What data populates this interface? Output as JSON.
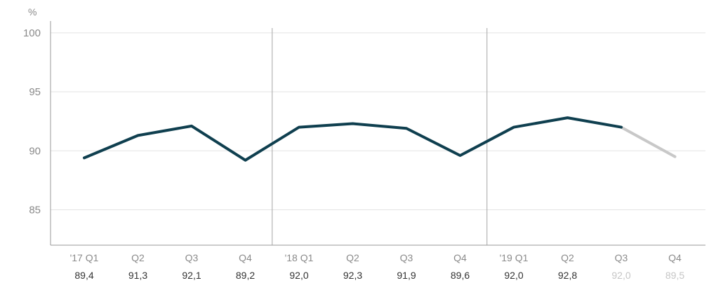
{
  "chart_data": {
    "type": "line",
    "unit_label": "%",
    "ylim": [
      82,
      101
    ],
    "yticks": [
      "100",
      "95",
      "90",
      "85"
    ],
    "categories": [
      "'17 Q1",
      "Q2",
      "Q3",
      "Q4",
      "'18 Q1",
      "Q2",
      "Q3",
      "Q4",
      "'19 Q1",
      "Q2",
      "Q3",
      "Q4"
    ],
    "value_labels": [
      "89,4",
      "91,3",
      "92,1",
      "89,2",
      "92,0",
      "92,3",
      "91,9",
      "89,6",
      "92,0",
      "92,8",
      "92,0",
      "89,5"
    ],
    "series": [
      {
        "values": [
          89.4,
          91.3,
          92.1,
          89.2,
          92.0,
          92.3,
          91.9,
          89.6,
          92.0,
          92.8,
          92.0,
          89.5
        ]
      }
    ],
    "projected_from_index": 10,
    "year_separators_after_index": [
      3,
      7
    ],
    "grid": true,
    "colors": {
      "actual": "#0f3f4f",
      "projected": "#c8c8c8",
      "grid": "#e3e3e3",
      "axis": "#9a9a9a",
      "separator": "#a6a6a6",
      "value_text": "#333333",
      "projected_text": "#c6c6c6"
    }
  }
}
